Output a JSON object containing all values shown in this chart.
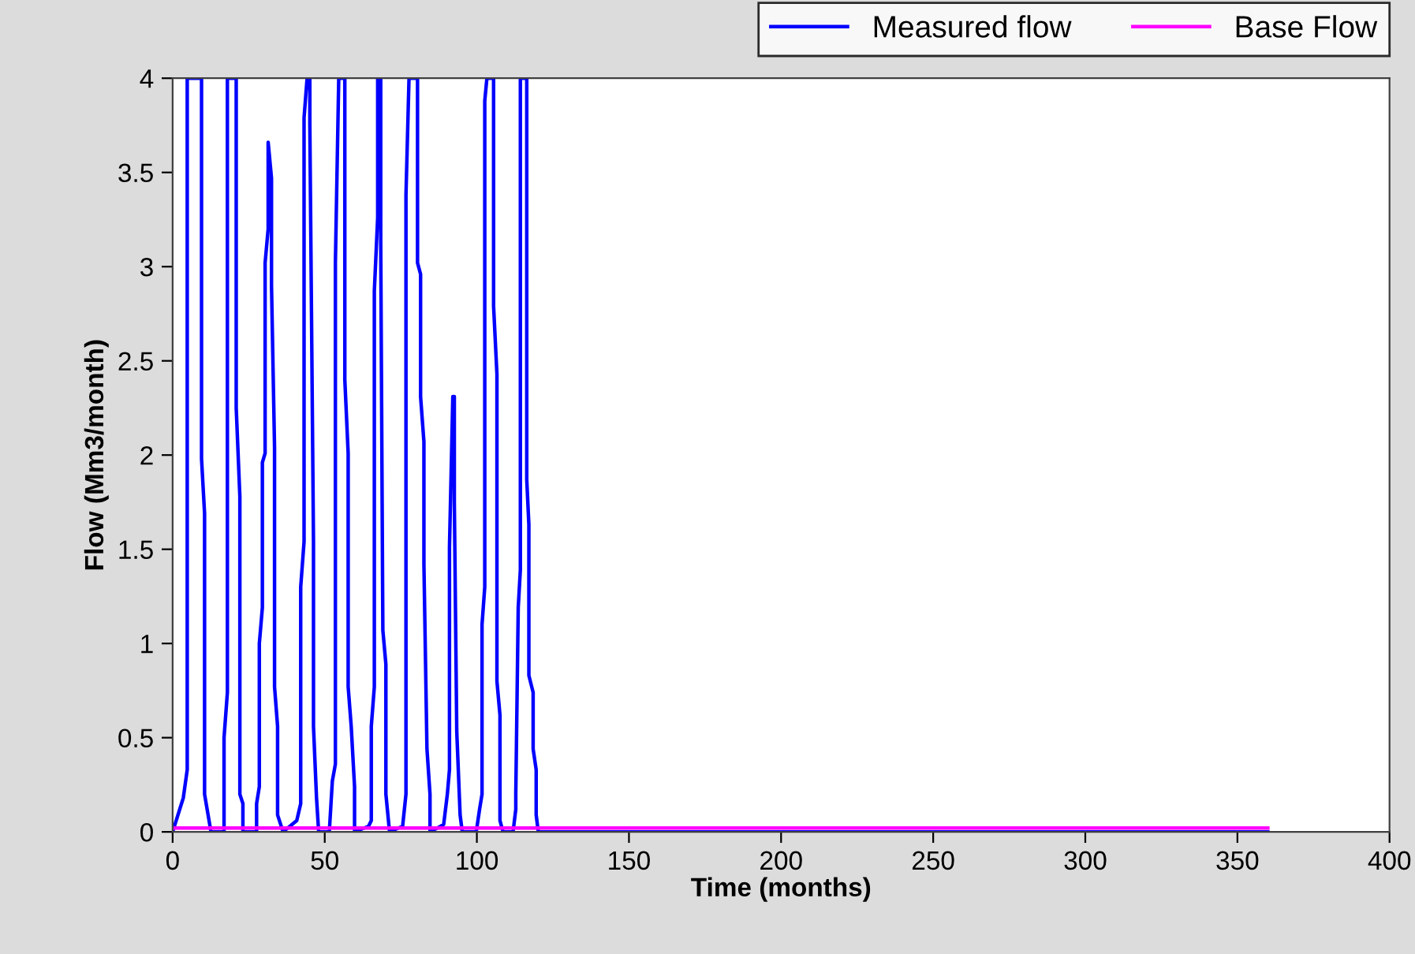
{
  "chart_data": {
    "type": "line",
    "xlabel": "Time (months)",
    "ylabel": "Flow (Mm3/month)",
    "xlim": [
      0,
      400
    ],
    "xticks": [
      0,
      50,
      100,
      150,
      200,
      250,
      300,
      350,
      400
    ],
    "ylim": [
      0,
      4
    ],
    "yticks": [
      0,
      0.5,
      1,
      1.5,
      2,
      2.5,
      3,
      3.5,
      4
    ],
    "grid": false,
    "legend": "top right",
    "marker": "none",
    "line_style": "solid",
    "series": [
      {
        "name": "Measured flow",
        "color": "#0000ff",
        "x": [
          0,
          3.5,
          4.8,
          4.8,
          9.5,
          9.5,
          10.5,
          10.5,
          12.6,
          16.9,
          16.9,
          18,
          18,
          20.9,
          20.9,
          22.1,
          22.1,
          23.1,
          23.1,
          27.6,
          27.6,
          28.5,
          28.5,
          29.5,
          29.5,
          30.4,
          30.4,
          31.4,
          31.4,
          32.5,
          32.5,
          33.5,
          33.5,
          34.5,
          34.5,
          36.3,
          40.8,
          42.1,
          42.1,
          43.2,
          43.2,
          44.2,
          45.1,
          45.1,
          46.3,
          46.3,
          47.3,
          48,
          51.5,
          52.5,
          53.5,
          53.5,
          54.6,
          56.6,
          56.6,
          57.7,
          57.7,
          58.7,
          59.8,
          59.8,
          64.4,
          65.3,
          65.3,
          66.3,
          66.3,
          67.4,
          67.4,
          68.4,
          68.4,
          69.1,
          70.1,
          70.1,
          71.3,
          75.6,
          76.7,
          76.7,
          77.7,
          80.5,
          80.5,
          81.5,
          81.5,
          82.6,
          82.6,
          83.6,
          84.6,
          84.6,
          88.1,
          89.1,
          90.3,
          91,
          91,
          92.1,
          92.6,
          92.6,
          93.4,
          94.5,
          95.2,
          99.8,
          100.9,
          101.7,
          101.7,
          102.6,
          102.6,
          103.3,
          105.5,
          105.5,
          106.6,
          106.6,
          107.6,
          107.6,
          108.6,
          111.9,
          112.8,
          112.8,
          113.6,
          114.3,
          114.3,
          116.4,
          116.4,
          117.1,
          117.1,
          118.5,
          118.5,
          119.5,
          119.5,
          120.2,
          360
        ],
        "values": [
          0,
          0.18,
          0.33,
          4,
          4,
          1.98,
          1.69,
          0.2,
          0,
          0,
          0.5,
          0.74,
          4,
          4,
          2.25,
          1.78,
          0.2,
          0.15,
          0,
          0,
          0.15,
          0.24,
          1.0,
          1.19,
          1.96,
          2.01,
          3.02,
          3.2,
          3.66,
          3.47,
          2.9,
          2.04,
          0.77,
          0.56,
          0.09,
          0,
          0.06,
          0.15,
          1.3,
          1.54,
          3.79,
          4,
          4,
          3.76,
          1.54,
          0.56,
          0.18,
          0,
          0,
          0.27,
          0.36,
          3.02,
          4,
          4,
          2.4,
          2.01,
          0.77,
          0.56,
          0.24,
          0,
          0.03,
          0.06,
          0.56,
          0.77,
          2.87,
          3.26,
          4,
          4,
          3.14,
          1.07,
          0.89,
          0.2,
          0,
          0.03,
          0.2,
          3.38,
          4,
          4,
          3.02,
          2.96,
          2.31,
          2.07,
          1.42,
          0.44,
          0.2,
          0,
          0.03,
          0.04,
          0.2,
          0.33,
          1.51,
          2.31,
          2.31,
          1.75,
          0.53,
          0.09,
          0,
          0,
          0.12,
          0.2,
          1.1,
          1.3,
          3.88,
          4,
          4,
          2.79,
          2.43,
          0.8,
          0.62,
          0.06,
          0,
          0,
          0.12,
          0.2,
          1.19,
          1.39,
          4,
          4,
          1.87,
          1.63,
          0.83,
          0.74,
          0.44,
          0.33,
          0.09,
          0,
          0
        ]
      },
      {
        "name": "Base Flow",
        "color": "#ff00ff",
        "x": [
          0,
          360
        ],
        "values": [
          0.02,
          0.02
        ]
      }
    ]
  }
}
